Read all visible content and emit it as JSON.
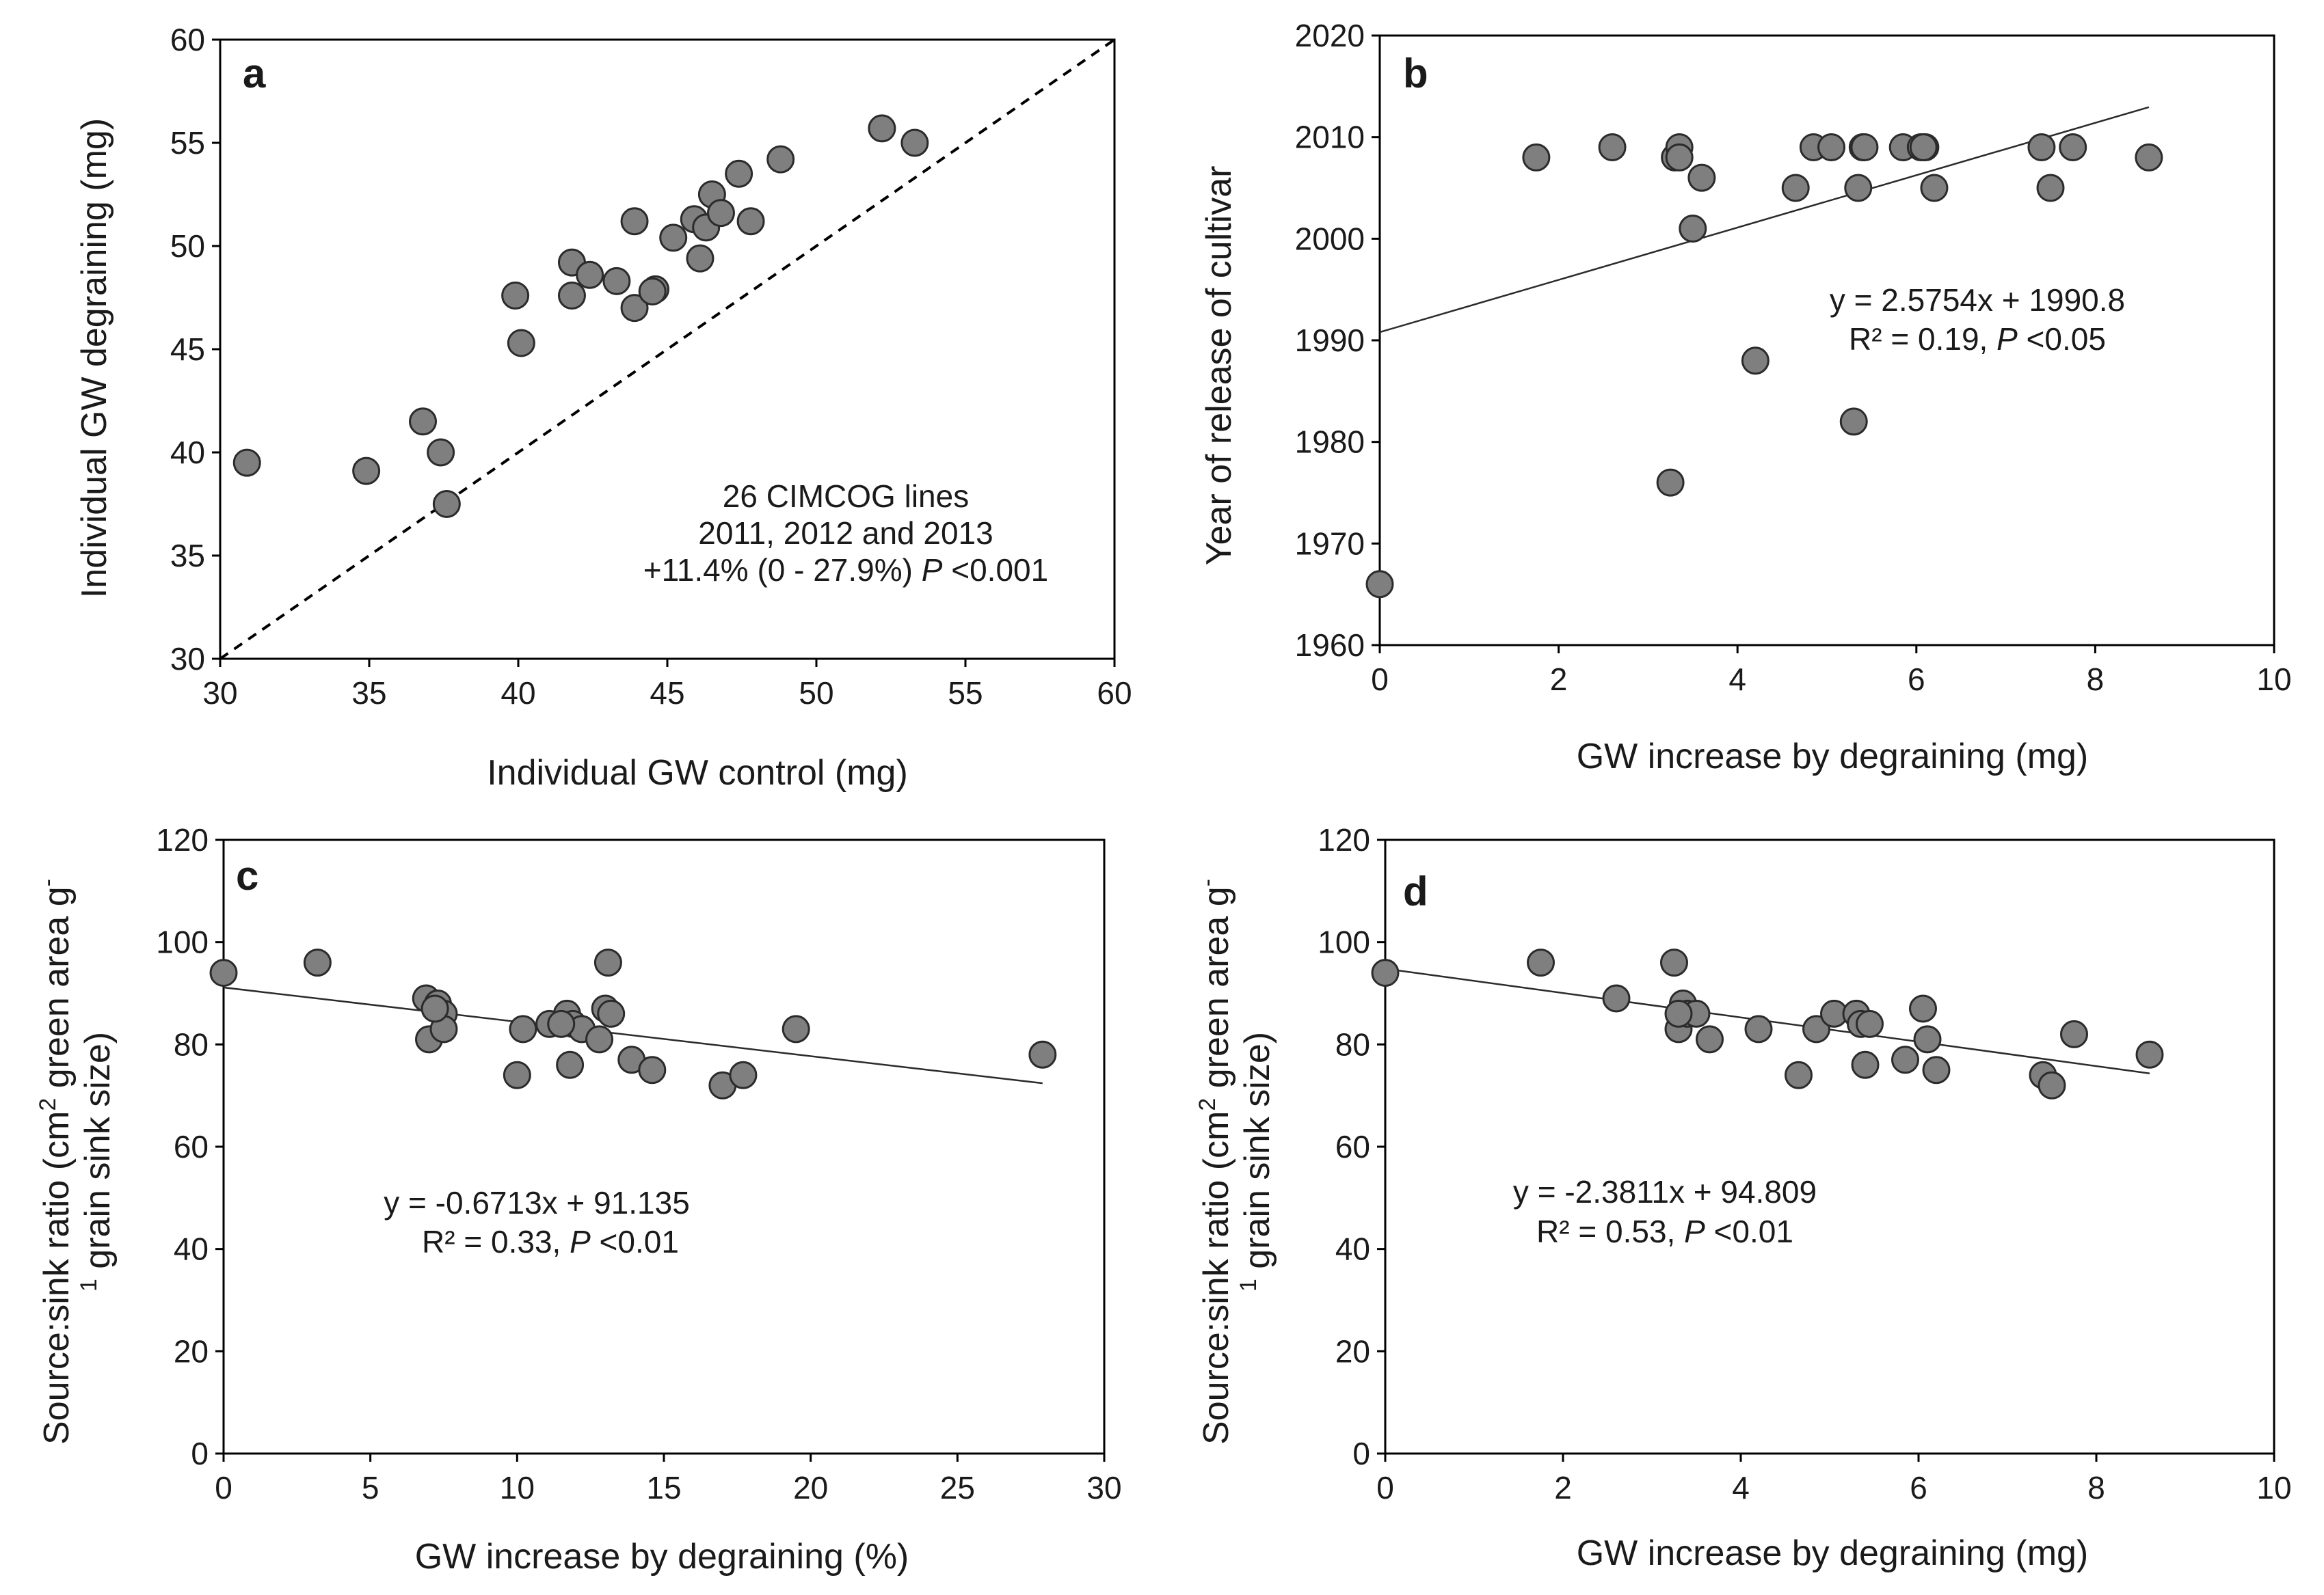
{
  "chart_data": [
    {
      "id": "a",
      "type": "scatter",
      "panel_label": "a",
      "xlabel": "Individual  GW control (mg)",
      "ylabel": "Individual  GW degraining (mg)",
      "xlim": [
        30,
        60
      ],
      "ylim": [
        30,
        60
      ],
      "xticks": [
        30,
        35,
        40,
        45,
        50,
        55,
        60
      ],
      "yticks": [
        30,
        35,
        40,
        45,
        50,
        55,
        60
      ],
      "x_tick_labels": [
        "30",
        "35",
        "40",
        "45",
        "50",
        "55",
        "60"
      ],
      "y_tick_labels": [
        "30",
        "35",
        "40",
        "45",
        "50",
        "55",
        "60"
      ],
      "reference_line": "1:1 dashed",
      "points": [
        [
          30.9,
          39.5
        ],
        [
          34.9,
          39.1
        ],
        [
          36.8,
          41.5
        ],
        [
          37.4,
          40.0
        ],
        [
          37.6,
          37.5
        ],
        [
          39.9,
          47.6
        ],
        [
          40.1,
          45.3
        ],
        [
          41.8,
          49.2
        ],
        [
          41.8,
          47.6
        ],
        [
          42.4,
          48.6
        ],
        [
          43.3,
          48.3
        ],
        [
          43.9,
          51.2
        ],
        [
          43.9,
          47.0
        ],
        [
          44.6,
          47.9
        ],
        [
          45.2,
          50.4
        ],
        [
          45.9,
          51.3
        ],
        [
          46.1,
          49.4
        ],
        [
          46.3,
          50.9
        ],
        [
          46.5,
          52.5
        ],
        [
          46.8,
          51.6
        ],
        [
          47.4,
          53.5
        ],
        [
          47.8,
          51.2
        ],
        [
          48.8,
          54.2
        ],
        [
          52.2,
          55.7
        ],
        [
          53.3,
          55.0
        ],
        [
          44.5,
          47.8
        ]
      ],
      "annotation": [
        "26 CIMCOG lines",
        "2011, 2012 and 2013",
        "+11.4% (0 - 27.9%) ",
        "P",
        " <0.001"
      ]
    },
    {
      "id": "b",
      "type": "scatter",
      "panel_label": "b",
      "xlabel": "GW increase by degraining  (mg)",
      "ylabel": "Year of release of cultivar",
      "xlim": [
        0,
        10
      ],
      "ylim": [
        1960,
        2020
      ],
      "xticks": [
        0,
        2,
        4,
        6,
        8,
        10
      ],
      "yticks": [
        1960,
        1970,
        1980,
        1990,
        2000,
        2010,
        2020
      ],
      "x_tick_labels": [
        "0",
        "2",
        "4",
        "6",
        "8",
        "10"
      ],
      "y_tick_labels": [
        "1960",
        "1970",
        "1980",
        "1990",
        "2000",
        "2010",
        "2020"
      ],
      "points": [
        [
          0.0,
          1966
        ],
        [
          1.75,
          2008
        ],
        [
          2.6,
          2009
        ],
        [
          3.25,
          1976
        ],
        [
          3.3,
          2008
        ],
        [
          3.35,
          2009
        ],
        [
          3.5,
          2001
        ],
        [
          3.6,
          2006
        ],
        [
          4.2,
          1988
        ],
        [
          4.65,
          2005
        ],
        [
          4.85,
          2009
        ],
        [
          5.05,
          2009
        ],
        [
          5.3,
          1982
        ],
        [
          5.35,
          2005
        ],
        [
          5.4,
          2009
        ],
        [
          5.85,
          2009
        ],
        [
          6.05,
          2009
        ],
        [
          6.1,
          2009
        ],
        [
          6.2,
          2005
        ],
        [
          7.4,
          2009
        ],
        [
          7.5,
          2005
        ],
        [
          7.75,
          2009
        ],
        [
          8.6,
          2008
        ],
        [
          3.35,
          2008
        ],
        [
          5.42,
          2009
        ],
        [
          6.08,
          2009
        ]
      ],
      "trendline": {
        "slope": 2.5754,
        "intercept": 1990.8,
        "x_range": [
          0,
          8.6
        ]
      },
      "equation": "y = 2.5754x + 1990.8",
      "stats": [
        "R² = 0.19, ",
        "P",
        " <0.05"
      ]
    },
    {
      "id": "c",
      "type": "scatter",
      "panel_label": "c",
      "xlabel": "GW increase by degraining  (%)",
      "ylabel_lines": [
        "Source:sink ratio (cm",
        "2",
        " green area g",
        "-",
        "1",
        " grain sink size)"
      ],
      "xlim": [
        0,
        30
      ],
      "ylim": [
        0,
        120
      ],
      "xticks": [
        0,
        5,
        10,
        15,
        20,
        25,
        30
      ],
      "yticks": [
        0,
        20,
        40,
        60,
        80,
        100,
        120
      ],
      "x_tick_labels": [
        "0",
        "5",
        "10",
        "15",
        "20",
        "25",
        "30"
      ],
      "y_tick_labels": [
        "0",
        "20",
        "40",
        "60",
        "80",
        "100",
        "120"
      ],
      "points": [
        [
          0.0,
          94
        ],
        [
          3.2,
          96
        ],
        [
          6.9,
          89
        ],
        [
          7.0,
          81
        ],
        [
          7.3,
          88
        ],
        [
          7.5,
          86
        ],
        [
          7.5,
          83
        ],
        [
          10.0,
          74
        ],
        [
          10.2,
          83
        ],
        [
          11.1,
          84
        ],
        [
          11.7,
          86
        ],
        [
          11.8,
          76
        ],
        [
          11.9,
          84
        ],
        [
          12.2,
          83
        ],
        [
          12.8,
          81
        ],
        [
          13.0,
          87
        ],
        [
          13.1,
          96
        ],
        [
          13.2,
          86
        ],
        [
          13.9,
          77
        ],
        [
          14.6,
          75
        ],
        [
          17.0,
          72
        ],
        [
          17.7,
          74
        ],
        [
          19.5,
          83
        ],
        [
          27.9,
          78
        ],
        [
          7.2,
          87
        ],
        [
          11.5,
          84
        ]
      ],
      "trendline": {
        "slope": -0.6713,
        "intercept": 91.135,
        "x_range": [
          0,
          27.9
        ]
      },
      "equation": "y = -0.6713x + 91.135",
      "stats": [
        "R² = 0.33, ",
        "P",
        " <0.01"
      ]
    },
    {
      "id": "d",
      "type": "scatter",
      "panel_label": "d",
      "xlabel": "GW increase by degraining  (mg)",
      "ylabel_lines": [
        "Source:sink ratio (cm",
        "2",
        " green area g",
        "-",
        "1",
        " grain sink size)"
      ],
      "xlim": [
        0,
        10
      ],
      "ylim": [
        0,
        120
      ],
      "xticks": [
        0,
        2,
        4,
        6,
        8,
        10
      ],
      "yticks": [
        0,
        20,
        40,
        60,
        80,
        100,
        120
      ],
      "x_tick_labels": [
        "0",
        "2",
        "4",
        "6",
        "8",
        "10"
      ],
      "y_tick_labels": [
        "0",
        "20",
        "40",
        "60",
        "80",
        "100",
        "120"
      ],
      "points": [
        [
          0.0,
          94
        ],
        [
          1.75,
          96
        ],
        [
          2.6,
          89
        ],
        [
          3.25,
          96
        ],
        [
          3.3,
          83
        ],
        [
          3.35,
          88
        ],
        [
          3.4,
          86
        ],
        [
          3.5,
          86
        ],
        [
          3.65,
          81
        ],
        [
          4.2,
          83
        ],
        [
          4.65,
          74
        ],
        [
          4.85,
          83
        ],
        [
          5.05,
          86
        ],
        [
          5.3,
          86
        ],
        [
          5.35,
          84
        ],
        [
          5.4,
          76
        ],
        [
          5.45,
          84
        ],
        [
          5.85,
          77
        ],
        [
          6.05,
          87
        ],
        [
          6.1,
          81
        ],
        [
          6.2,
          75
        ],
        [
          7.4,
          74
        ],
        [
          7.5,
          72
        ],
        [
          7.75,
          82
        ],
        [
          8.6,
          78
        ],
        [
          3.3,
          86
        ]
      ],
      "trendline": {
        "slope": -2.3811,
        "intercept": 94.809,
        "x_range": [
          0,
          8.6
        ]
      },
      "equation": "y = -2.3811x + 94.809",
      "stats": [
        "R² = 0.53, ",
        "P",
        " <0.01"
      ]
    }
  ]
}
